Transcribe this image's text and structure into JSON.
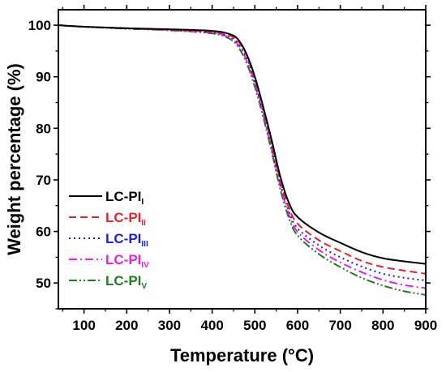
{
  "chart_data": {
    "type": "line",
    "xlabel": "Temperature (°C)",
    "ylabel": "Weight percentage (%)",
    "xlim": [
      40,
      900
    ],
    "ylim": [
      45,
      103
    ],
    "x_ticks": [
      100,
      200,
      300,
      400,
      500,
      600,
      700,
      800,
      900
    ],
    "y_ticks": [
      50,
      60,
      70,
      80,
      90,
      100
    ],
    "grid": false,
    "legend_position": "lower-left",
    "series": [
      {
        "name": "LC-PI",
        "subscript": "I",
        "color": "#000000",
        "dash": "solid",
        "points": [
          [
            40,
            100
          ],
          [
            100,
            99.7
          ],
          [
            200,
            99.4
          ],
          [
            300,
            99.2
          ],
          [
            400,
            98.9
          ],
          [
            440,
            98.3
          ],
          [
            460,
            97.3
          ],
          [
            480,
            94.5
          ],
          [
            500,
            90
          ],
          [
            520,
            84
          ],
          [
            540,
            77.5
          ],
          [
            560,
            70.5
          ],
          [
            580,
            65.5
          ],
          [
            600,
            62.8
          ],
          [
            650,
            59.8
          ],
          [
            700,
            57.8
          ],
          [
            750,
            56
          ],
          [
            800,
            54.8
          ],
          [
            850,
            54.2
          ],
          [
            900,
            53.7
          ]
        ]
      },
      {
        "name": "LC-PI",
        "subscript": "II",
        "color": "#e8202a",
        "dash": "dashed",
        "points": [
          [
            40,
            100
          ],
          [
            100,
            99.7
          ],
          [
            200,
            99.4
          ],
          [
            300,
            99.1
          ],
          [
            400,
            98.7
          ],
          [
            440,
            98
          ],
          [
            460,
            97
          ],
          [
            480,
            94.3
          ],
          [
            500,
            89.5
          ],
          [
            520,
            83.5
          ],
          [
            540,
            76.8
          ],
          [
            560,
            69.8
          ],
          [
            580,
            64.5
          ],
          [
            600,
            61.5
          ],
          [
            650,
            58.3
          ],
          [
            700,
            56.2
          ],
          [
            750,
            54.3
          ],
          [
            800,
            53.1
          ],
          [
            850,
            52.4
          ],
          [
            900,
            51.8
          ]
        ]
      },
      {
        "name": "LC-PI",
        "subscript": "III",
        "color": "#1c1ce0",
        "dash": "dotted",
        "points": [
          [
            40,
            100
          ],
          [
            100,
            99.7
          ],
          [
            200,
            99.4
          ],
          [
            300,
            99.1
          ],
          [
            400,
            98.6
          ],
          [
            440,
            97.8
          ],
          [
            460,
            96.6
          ],
          [
            480,
            93.8
          ],
          [
            500,
            89
          ],
          [
            520,
            83
          ],
          [
            540,
            76.3
          ],
          [
            560,
            69.2
          ],
          [
            580,
            63.8
          ],
          [
            600,
            60.6
          ],
          [
            650,
            57.3
          ],
          [
            700,
            55
          ],
          [
            750,
            53.2
          ],
          [
            800,
            51.8
          ],
          [
            850,
            51
          ],
          [
            900,
            50.5
          ]
        ]
      },
      {
        "name": "LC-PI",
        "subscript": "IV",
        "color": "#e61ee6",
        "dash": "dashdot",
        "points": [
          [
            40,
            100
          ],
          [
            100,
            99.7
          ],
          [
            200,
            99.4
          ],
          [
            300,
            99
          ],
          [
            400,
            98.5
          ],
          [
            440,
            97.6
          ],
          [
            460,
            96.3
          ],
          [
            480,
            93.3
          ],
          [
            500,
            88.5
          ],
          [
            520,
            82.5
          ],
          [
            540,
            75.8
          ],
          [
            560,
            68.7
          ],
          [
            580,
            63.2
          ],
          [
            600,
            59.9
          ],
          [
            650,
            56.4
          ],
          [
            700,
            54
          ],
          [
            750,
            52.1
          ],
          [
            800,
            50.6
          ],
          [
            850,
            49.6
          ],
          [
            900,
            49
          ]
        ]
      },
      {
        "name": "LC-PI",
        "subscript": "V",
        "color": "#1e7d1e",
        "dash": "dashdotdot",
        "points": [
          [
            40,
            100
          ],
          [
            100,
            99.7
          ],
          [
            200,
            99.3
          ],
          [
            300,
            99
          ],
          [
            400,
            98.4
          ],
          [
            440,
            97.4
          ],
          [
            460,
            95.9
          ],
          [
            480,
            92.8
          ],
          [
            500,
            88
          ],
          [
            520,
            82
          ],
          [
            540,
            75.2
          ],
          [
            560,
            68
          ],
          [
            580,
            62.5
          ],
          [
            600,
            59.2
          ],
          [
            650,
            55.6
          ],
          [
            700,
            53.1
          ],
          [
            750,
            51
          ],
          [
            800,
            49.5
          ],
          [
            850,
            48.4
          ],
          [
            900,
            47.7
          ]
        ]
      }
    ]
  }
}
